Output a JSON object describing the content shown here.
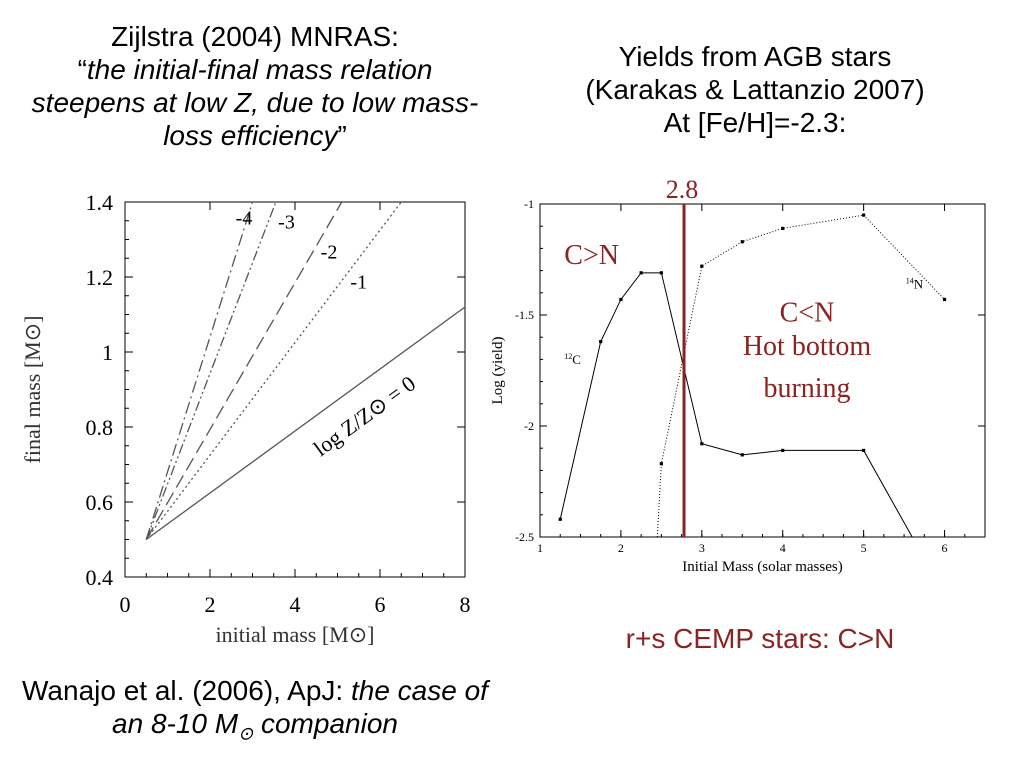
{
  "slide": {
    "left_title_line1": "Zijlstra (2004) MNRAS:",
    "left_title_quote_open": "“",
    "left_title_quote_text": "the initial-final mass relation steepens at low Z, due to low mass-loss efficiency",
    "left_title_quote_close": "”",
    "right_title_line1": "Yields from AGB stars",
    "right_title_line2": "(Karakas & Lattanzio 2007)",
    "right_title_line3": "At [Fe/H]=-2.3:",
    "footer_left_regular": "Wanajo et al. (2006), ApJ: ",
    "footer_left_italic": "the case of an 8-10 M",
    "footer_left_sub": "⊙",
    "footer_left_italic_end": " companion",
    "footer_right": "r+s CEMP stars: C>N",
    "colors": {
      "annotation": "#8b2323",
      "marker_line": "#8b2323"
    }
  },
  "chart_data": [
    {
      "type": "line",
      "xlabel": "initial mass [M⊙]",
      "ylabel": "final mass [M⊙]",
      "xlim": [
        0,
        8
      ],
      "ylim": [
        0.4,
        1.4
      ],
      "xticks": [
        0,
        2,
        4,
        6,
        8
      ],
      "yticks": [
        0.4,
        0.6,
        0.8,
        1,
        1.2,
        1.4
      ],
      "series": [
        {
          "name": "-4",
          "style": "dash-dot",
          "x": [
            0.5,
            3.0
          ],
          "y": [
            0.5,
            1.4
          ]
        },
        {
          "name": "-3",
          "style": "dash-dot-dot",
          "x": [
            0.5,
            3.55
          ],
          "y": [
            0.5,
            1.4
          ]
        },
        {
          "name": "-2",
          "style": "long-dash",
          "x": [
            0.5,
            5.1
          ],
          "y": [
            0.5,
            1.4
          ]
        },
        {
          "name": "-1",
          "style": "dotted",
          "x": [
            0.5,
            6.5
          ],
          "y": [
            0.5,
            1.4
          ]
        },
        {
          "name": "log Z/Z⊙ = 0",
          "style": "solid",
          "x": [
            0.5,
            8.0
          ],
          "y": [
            0.5,
            1.12
          ]
        }
      ],
      "annotations": [
        "-4",
        "-3",
        "-2",
        "-1",
        "log Z/Z⊙ = 0"
      ]
    },
    {
      "type": "line",
      "xlabel": "Initial Mass (solar masses)",
      "ylabel": "Log (yield)",
      "xlim": [
        1,
        6.5
      ],
      "ylim": [
        -2.5,
        -1
      ],
      "xticks": [
        1,
        2,
        3,
        4,
        5,
        6
      ],
      "yticks": [
        -1,
        -1.5,
        -2,
        -2.5
      ],
      "series": [
        {
          "name": "12C",
          "style": "solid",
          "x": [
            1.25,
            1.75,
            2.0,
            2.25,
            2.5,
            3.0,
            3.5,
            4.0,
            5.0,
            5.6
          ],
          "y": [
            -2.42,
            -1.62,
            -1.43,
            -1.31,
            -1.31,
            -2.08,
            -2.13,
            -2.11,
            -2.11,
            -2.5
          ]
        },
        {
          "name": "14N",
          "style": "dotted",
          "x": [
            2.45,
            2.5,
            3.0,
            3.5,
            4.0,
            5.0,
            6.0
          ],
          "y": [
            -2.5,
            -2.17,
            -1.28,
            -1.17,
            -1.11,
            -1.05,
            -1.43
          ]
        }
      ],
      "series_labels": {
        "c12": "12",
        "c12_el": "C",
        "n14": "14",
        "n14_el": "N"
      },
      "vline": {
        "x": 2.78,
        "label": "2.8"
      },
      "annotations": {
        "c_gt_n": "C>N",
        "c_lt_n": "C<N",
        "hbb_line1": "Hot bottom",
        "hbb_line2": "burning"
      }
    }
  ]
}
